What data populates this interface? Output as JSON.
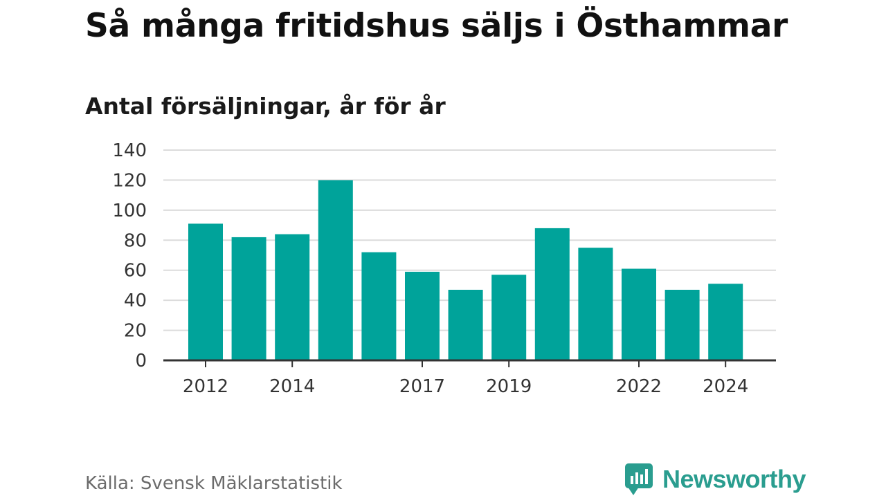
{
  "header": {
    "title": "Så många fritidshus säljs i Östhammar",
    "subtitle": "Antal försäljningar, år för år"
  },
  "footer": {
    "source": "Källa: Svensk Mäklarstatistik",
    "brand": "Newsworthy",
    "brand_icon": "newsworthy-logo-icon"
  },
  "colors": {
    "bar": "#00a39a",
    "grid": "#dcdcdc",
    "axis": "#333333",
    "brand": "#2a9d8f"
  },
  "chart_data": {
    "type": "bar",
    "title": "Så många fritidshus säljs i Östhammar",
    "subtitle": "Antal försäljningar, år för år",
    "categories": [
      "2012",
      "2013",
      "2014",
      "2015",
      "2016",
      "2017",
      "2018",
      "2019",
      "2020",
      "2021",
      "2022",
      "2023",
      "2024"
    ],
    "values": [
      91,
      82,
      84,
      120,
      72,
      59,
      47,
      57,
      88,
      75,
      61,
      47,
      51
    ],
    "x_tick_labels": [
      "2012",
      "2014",
      "2017",
      "2019",
      "2022",
      "2024"
    ],
    "y_ticks": [
      0,
      20,
      40,
      60,
      80,
      100,
      120,
      140
    ],
    "ylim": [
      0,
      140
    ],
    "xlabel": "",
    "ylabel": "",
    "grid": true,
    "legend": "none"
  }
}
